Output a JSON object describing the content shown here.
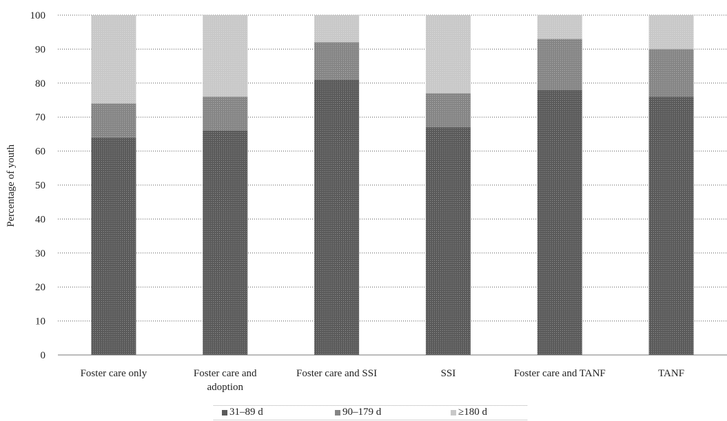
{
  "chart_data": {
    "type": "bar",
    "stacked": true,
    "title": "",
    "xlabel": "",
    "ylabel": "Percentage of youth",
    "ylim": [
      0,
      100
    ],
    "y_ticks": [
      0,
      10,
      20,
      30,
      40,
      50,
      60,
      70,
      80,
      90,
      100
    ],
    "grid": true,
    "legend_position": "bottom",
    "categories": [
      "Foster care only",
      "Foster care and adoption",
      "Foster care and SSI",
      "SSI",
      "Foster care and TANF",
      "TANF"
    ],
    "category_lines": [
      [
        "Foster care only"
      ],
      [
        "Foster care and",
        "adoption"
      ],
      [
        "Foster care and SSI"
      ],
      [
        "SSI"
      ],
      [
        "Foster care and TANF"
      ],
      [
        "TANF"
      ]
    ],
    "series": [
      {
        "name": "31–89 d",
        "color": "#5a5a5a",
        "values": [
          64,
          66,
          81,
          67,
          78,
          76
        ]
      },
      {
        "name": "90–179 d",
        "color": "#858585",
        "values": [
          10,
          10,
          11,
          10,
          15,
          14
        ]
      },
      {
        "name": "≥180 d",
        "color": "#c8c8c8",
        "values": [
          26,
          24,
          8,
          23,
          7,
          10
        ]
      }
    ]
  }
}
